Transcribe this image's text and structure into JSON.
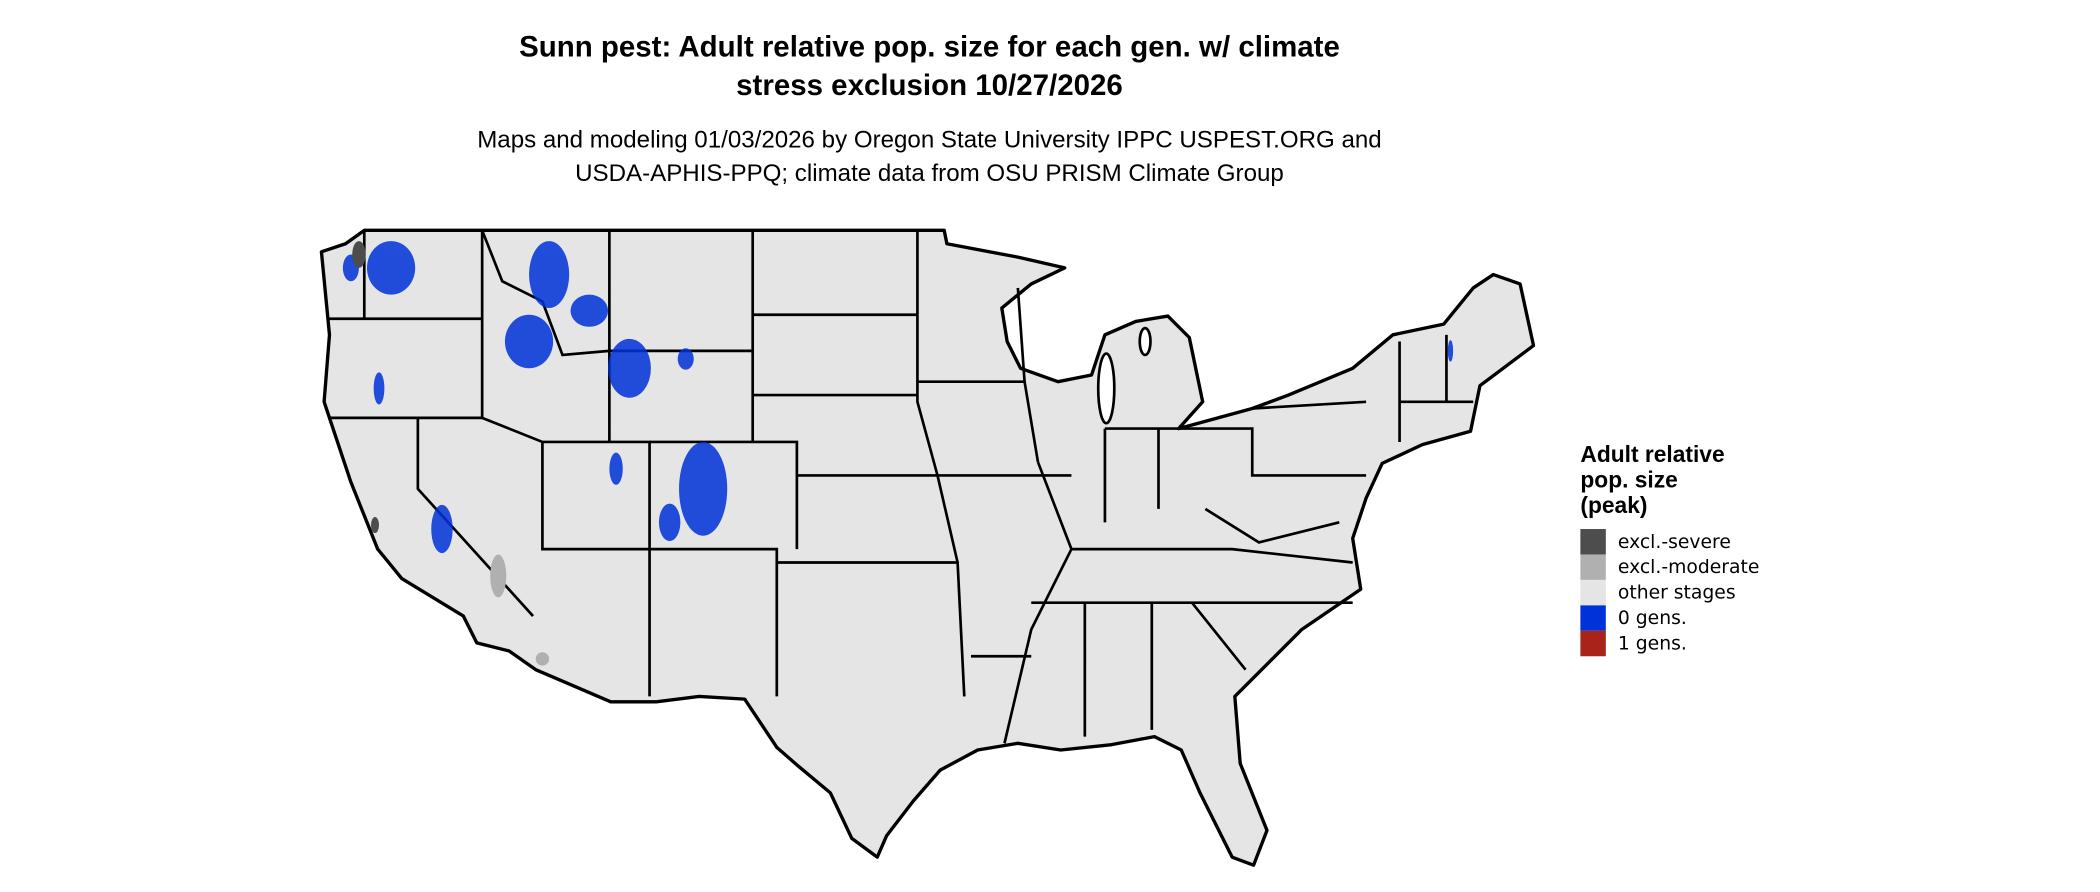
{
  "title": {
    "line1": "Sunn pest: Adult relative pop. size for each gen. w/ climate",
    "line2": "stress exclusion 10/27/2026"
  },
  "subtitle": {
    "line1": "Maps and modeling 01/03/2026 by Oregon State University IPPC USPEST.ORG and",
    "line2": "USDA-APHIS-PPQ; climate data from OSU PRISM Climate Group"
  },
  "map": {
    "region": "Contiguous United States",
    "land_color": "#e5e5e5",
    "border_color": "#000000"
  },
  "legend": {
    "title_line1": "Adult relative",
    "title_line2": "pop. size",
    "title_line3": "(peak)",
    "items": [
      {
        "label": "excl.-severe",
        "color": "#4d4d4d"
      },
      {
        "label": "excl.-moderate",
        "color": "#b0b0b0"
      },
      {
        "label": "other stages",
        "color": "#e5e5e5"
      },
      {
        "label": "0 gens.",
        "color": "#0032d9"
      },
      {
        "label": "1 gens.",
        "color": "#a8241a"
      }
    ]
  }
}
